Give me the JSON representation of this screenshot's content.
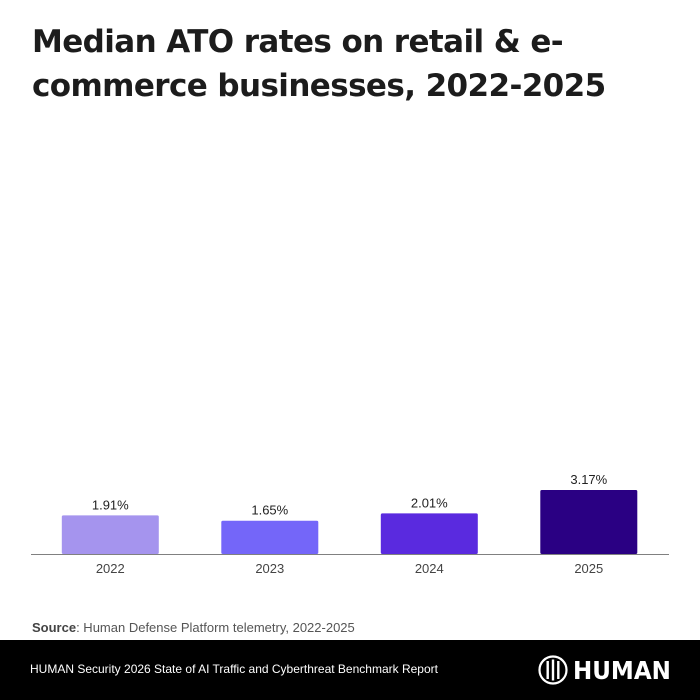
{
  "title": "Median ATO rates on retail & e-commerce businesses, 2022-2025",
  "chart_data": {
    "type": "bar",
    "title": "Median ATO rates on retail & e-commerce businesses, 2022-2025",
    "categories": [
      "2022",
      "2023",
      "2024",
      "2025"
    ],
    "values": [
      1.91,
      1.65,
      2.01,
      3.17
    ],
    "value_labels": [
      "1.91%",
      "1.65%",
      "2.01%",
      "3.17%"
    ],
    "colors": [
      "#A594EE",
      "#7466F9",
      "#5A2ADF",
      "#2A0083"
    ],
    "xlabel": "",
    "ylabel": "",
    "unit": "%",
    "ylim": [
      0,
      21
    ],
    "grid": false,
    "legend": "none"
  },
  "source": {
    "label": "Source",
    "text": ": Human Defense Platform telemetry, 2022-2025"
  },
  "footer": {
    "report": "HUMAN Security 2026 State of AI Traffic and Cyberthreat Benchmark Report",
    "logo_text": "HUMAN",
    "logo_icon": "human-logo-icon"
  }
}
